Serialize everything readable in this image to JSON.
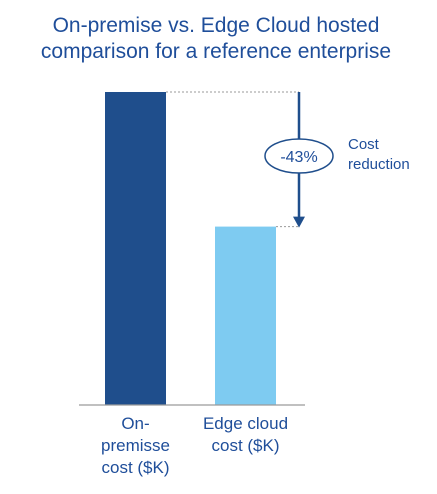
{
  "chart_data": {
    "type": "bar",
    "title_lines": [
      "On-premise vs. Edge Cloud hosted",
      "comparison for a reference enterprise"
    ],
    "categories": [
      [
        "On-",
        "premisse",
        "cost ($K)"
      ],
      [
        "Edge cloud",
        "cost ($K)"
      ]
    ],
    "values": [
      100,
      57
    ],
    "colors": [
      "#1f4e8c",
      "#7ecbf1"
    ],
    "annotation": {
      "badge": "-43%",
      "label_lines": [
        "Cost",
        "reduction"
      ]
    },
    "xlabel": "",
    "ylabel": "",
    "ylim": [
      0,
      100
    ],
    "grid": false
  },
  "colors": {
    "text": "#1f4e9a",
    "arrow": "#1f4e8c",
    "axis": "#9a9a9a"
  }
}
